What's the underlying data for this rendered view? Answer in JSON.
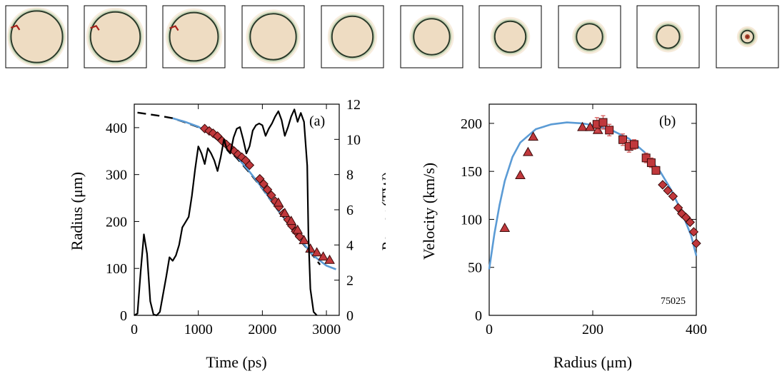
{
  "colors": {
    "marker_fill": "#c0383c",
    "marker_stroke": "#3a0a0a",
    "errorbar": "#d55a5a",
    "fit_line": "#5b9bd5",
    "power_line": "#000000",
    "frame_bg": "#ecd8bd",
    "frame_ring": "#2a3a2a"
  },
  "frames": {
    "count": 10,
    "ring_radius": [
      0.83,
      0.8,
      0.78,
      0.74,
      0.66,
      0.58,
      0.5,
      0.42,
      0.37,
      0.2
    ]
  },
  "chart_data": [
    {
      "type": "line",
      "panel_label": "(a)",
      "xlabel": "Time (ps)",
      "ylabel": "Radius (μm)",
      "y2label": "Power (TW)",
      "xlim": [
        0,
        3200
      ],
      "ylim": [
        0,
        450
      ],
      "y2lim": [
        0,
        12
      ],
      "xticks": [
        0,
        1000,
        2000,
        3000
      ],
      "yticks": [
        0,
        100,
        200,
        300,
        400
      ],
      "y2ticks": [
        0,
        2,
        4,
        6,
        8,
        10,
        12
      ],
      "series": [
        {
          "style": "dashed-black",
          "x": [
            50,
            200,
            400,
            600,
            800,
            1000,
            1200,
            1400,
            1600,
            1800,
            2000,
            2200,
            2400,
            2600,
            2800,
            2900
          ],
          "y": [
            432,
            429,
            425,
            420,
            411,
            401,
            385,
            363,
            335,
            304,
            270,
            232,
            195,
            158,
            126,
            108
          ]
        },
        {
          "style": "solid-blue",
          "x": [
            600,
            800,
            1000,
            1200,
            1400,
            1600,
            1800,
            2000,
            2200,
            2400,
            2600,
            2800,
            3000,
            3150
          ],
          "y": [
            420,
            412,
            402,
            386,
            365,
            338,
            306,
            271,
            233,
            196,
            160,
            127,
            106,
            98
          ]
        },
        {
          "style": "diamond-markers",
          "x": [
            1100,
            1170,
            1230,
            1300,
            1370,
            1440,
            1500,
            1560,
            1620,
            1680,
            1740,
            1800,
            1960,
            2020,
            2080,
            2140,
            2200,
            2260,
            2330,
            2400,
            2460,
            2520,
            2580
          ],
          "y": [
            398,
            393,
            388,
            382,
            372,
            364,
            357,
            350,
            343,
            337,
            330,
            320,
            291,
            280,
            268,
            256,
            243,
            231,
            217,
            204,
            191,
            179,
            168
          ]
        },
        {
          "style": "triangle-markers",
          "x": [
            2250,
            2350,
            2450,
            2550,
            2650,
            2750,
            2850,
            2950,
            3050
          ],
          "y": [
            240,
            218,
            201,
            182,
            160,
            142,
            134,
            125,
            118
          ]
        },
        {
          "style": "power-solid-black",
          "axis": "y2",
          "x": [
            0,
            50,
            100,
            150,
            200,
            250,
            300,
            350,
            400,
            500,
            550,
            600,
            650,
            700,
            750,
            800,
            850,
            900,
            950,
            1000,
            1050,
            1100,
            1150,
            1200,
            1250,
            1300,
            1350,
            1400,
            1450,
            1500,
            1550,
            1600,
            1650,
            1700,
            1750,
            1800,
            1850,
            1900,
            1950,
            2000,
            2050,
            2100,
            2150,
            2200,
            2250,
            2300,
            2350,
            2400,
            2450,
            2500,
            2550,
            2600,
            2650,
            2700,
            2720,
            2750,
            2800,
            2850
          ],
          "y": [
            0,
            0.1,
            2.5,
            4.6,
            3.5,
            0.8,
            0.05,
            0.0,
            0.2,
            2.2,
            3.3,
            3.1,
            3.4,
            4.0,
            5.0,
            5.3,
            5.6,
            6.8,
            8.3,
            9.6,
            9.2,
            8.6,
            9.5,
            9.2,
            8.8,
            8.2,
            9.0,
            10.0,
            9.4,
            9.2,
            10.1,
            10.6,
            10.7,
            10.0,
            9.2,
            9.6,
            10.5,
            10.8,
            10.9,
            10.8,
            10.2,
            10.6,
            10.9,
            11.3,
            11.6,
            11.1,
            10.2,
            10.7,
            11.3,
            11.7,
            11.0,
            11.5,
            11.0,
            8.5,
            4.5,
            1.5,
            0.2,
            0.0
          ]
        }
      ]
    },
    {
      "type": "scatter",
      "panel_label": "(b)",
      "annotation": "75025",
      "xlabel": "Radius (μm)",
      "ylabel": "Velocity (km/s)",
      "xlim": [
        0,
        400
      ],
      "ylim": [
        0,
        220
      ],
      "xticks": [
        0,
        200,
        400
      ],
      "yticks": [
        0,
        50,
        100,
        150,
        200
      ],
      "series": [
        {
          "style": "solid-blue",
          "x": [
            0,
            10,
            20,
            30,
            45,
            60,
            90,
            120,
            150,
            180,
            210,
            240,
            270,
            300,
            330,
            350,
            370,
            390,
            400
          ],
          "y": [
            48,
            85,
            115,
            140,
            165,
            180,
            194,
            199,
            201,
            200,
            197,
            192,
            184,
            170,
            150,
            132,
            110,
            83,
            62
          ]
        },
        {
          "style": "triangle-markers",
          "x": [
            30,
            60,
            75,
            85,
            180,
            195,
            210
          ],
          "y": [
            91,
            146,
            170,
            186,
            196,
            196,
            193
          ]
        },
        {
          "style": "square-markers-errorbars",
          "x": [
            208,
            220,
            232,
            258,
            270,
            280,
            303,
            313,
            322
          ],
          "y": [
            199,
            201,
            193,
            183,
            176,
            178,
            164,
            159,
            151
          ],
          "err": [
            7,
            7,
            6,
            6,
            6,
            5,
            5,
            5,
            4
          ]
        },
        {
          "style": "diamond-markers",
          "x": [
            335,
            345,
            355,
            365,
            372,
            380,
            388,
            395,
            400
          ],
          "y": [
            136,
            130,
            124,
            112,
            106,
            102,
            97,
            87,
            75
          ]
        }
      ]
    }
  ]
}
